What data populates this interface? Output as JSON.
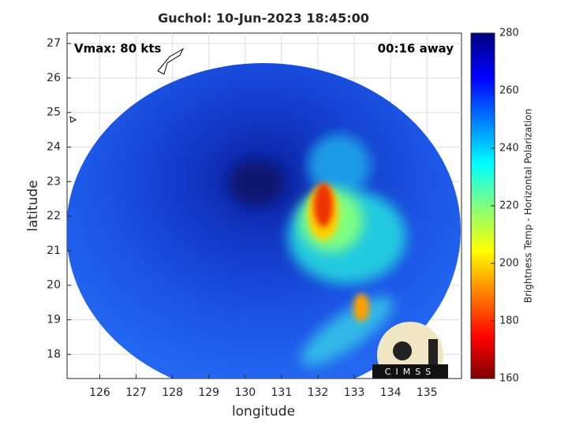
{
  "title": "Guchol: 10-Jun-2023 18:45:00",
  "x_label": "longitude",
  "y_label": "latitude",
  "xlim": [
    125.1,
    135.95
  ],
  "xticks": [
    126,
    127,
    128,
    129,
    130,
    131,
    132,
    133,
    134,
    135
  ],
  "ylim": [
    17.3,
    27.3
  ],
  "yticks": [
    18,
    19,
    20,
    21,
    22,
    23,
    24,
    25,
    26,
    27
  ],
  "grid": true,
  "annotations": {
    "intensity": "Vmax: 80 kts",
    "time_offset": "00:16 away"
  },
  "colorbar": {
    "label": "Brightness Temp - Horizontal Polarization",
    "lim": [
      160,
      280
    ],
    "ticks": [
      160,
      180,
      200,
      220,
      240,
      260,
      280
    ]
  },
  "logo": "CIMSS"
}
